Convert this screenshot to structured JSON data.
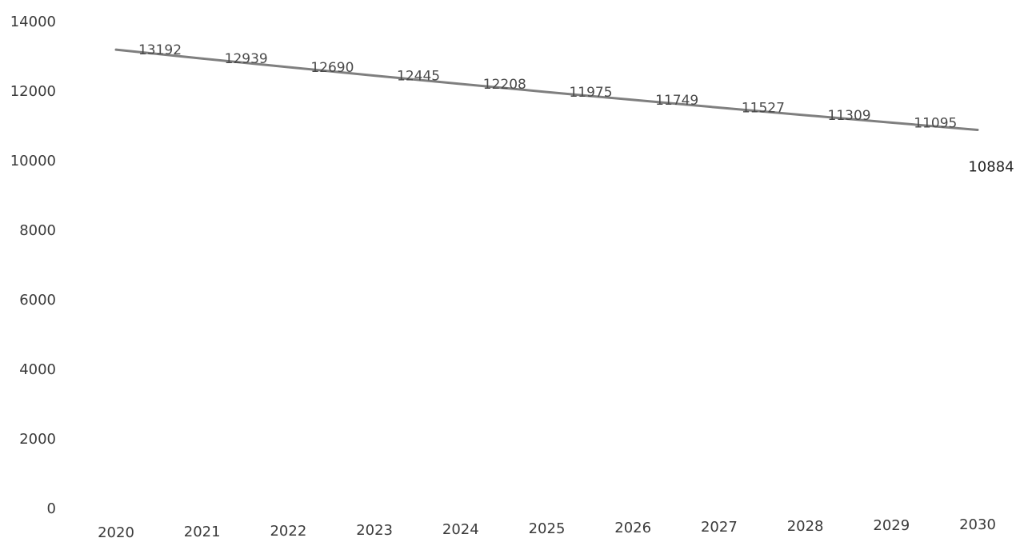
{
  "chart_data": {
    "type": "line",
    "title": "",
    "xlabel": "",
    "ylabel": "",
    "categories": [
      "2020",
      "2021",
      "2022",
      "2023",
      "2024",
      "2025",
      "2026",
      "2027",
      "2028",
      "2029",
      "2030"
    ],
    "series": [
      {
        "values": [
          13192,
          12939,
          12690,
          12445,
          12208,
          11975,
          11749,
          11527,
          11309,
          11095,
          10884
        ],
        "color": "#7f7f7f"
      }
    ],
    "yticks": [
      "0",
      "2000",
      "4000",
      "6000",
      "8000",
      "10000",
      "12000",
      "14000"
    ],
    "ylim": [
      0,
      14000
    ],
    "data_labels": [
      "13192",
      "12939",
      "12690",
      "12445",
      "12208",
      "11975",
      "11749",
      "11527",
      "11309",
      "11095",
      "10884"
    ],
    "grid": false,
    "legend": "none"
  }
}
